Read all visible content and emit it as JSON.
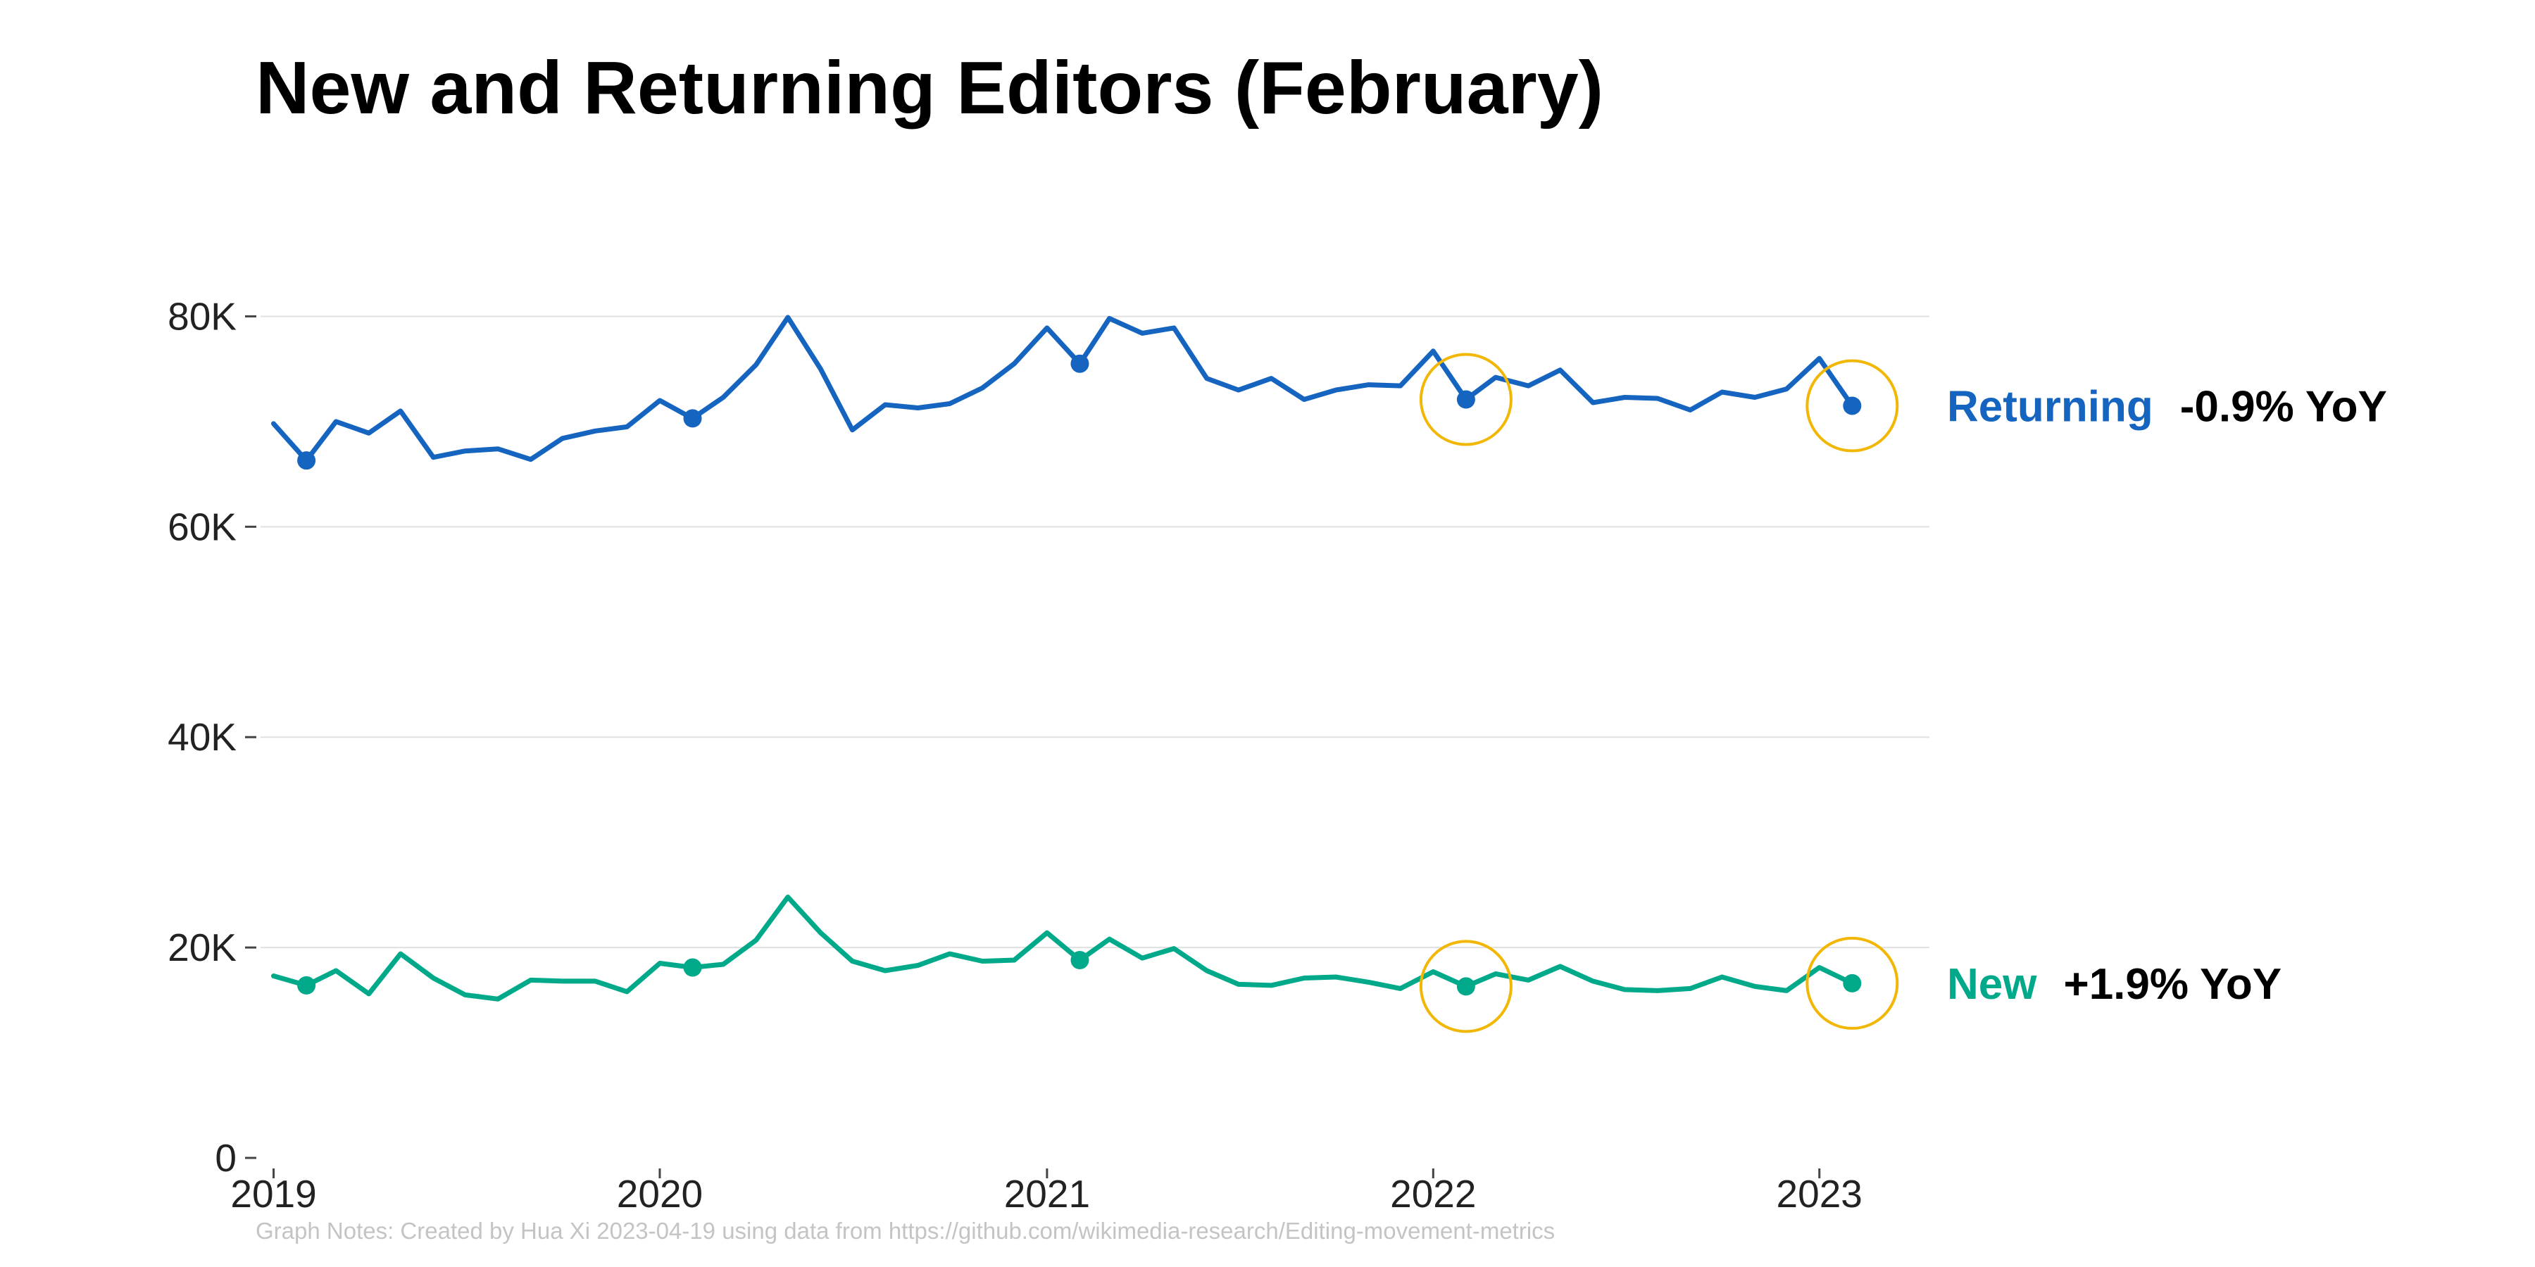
{
  "title": "New and Returning Editors (February)",
  "notes": "Graph Notes: Created by Hua Xi 2023-04-19 using data from https://github.com/wikimedia-research/Editing-movement-metrics",
  "colors": {
    "returning": "#1565c0",
    "new": "#00a98a",
    "highlight": "#f2b705",
    "grid": "#e0e0e0",
    "axis": "#444444"
  },
  "chart_data": {
    "type": "line",
    "title": "New and Returning Editors (February)",
    "xlabel": "",
    "ylabel": "",
    "x_range": [
      "2018-12-15",
      "2023-04-15"
    ],
    "ylim": [
      0,
      90000
    ],
    "y_ticks": [
      0,
      20000,
      40000,
      60000,
      80000
    ],
    "y_tick_labels": [
      "0",
      "20K",
      "40K",
      "60K",
      "80K"
    ],
    "x_ticks": [
      "2019-01",
      "2020-01",
      "2021-01",
      "2022-01",
      "2023-01"
    ],
    "x_tick_labels": [
      "2019",
      "2020",
      "2021",
      "2022",
      "2023"
    ],
    "grid": "horizontal",
    "x": [
      "2019-01",
      "2019-02",
      "2019-03",
      "2019-04",
      "2019-05",
      "2019-06",
      "2019-07",
      "2019-08",
      "2019-09",
      "2019-10",
      "2019-11",
      "2019-12",
      "2020-01",
      "2020-02",
      "2020-03",
      "2020-04",
      "2020-05",
      "2020-06",
      "2020-07",
      "2020-08",
      "2020-09",
      "2020-10",
      "2020-11",
      "2020-12",
      "2021-01",
      "2021-02",
      "2021-03",
      "2021-04",
      "2021-05",
      "2021-06",
      "2021-07",
      "2021-08",
      "2021-09",
      "2021-10",
      "2021-11",
      "2021-12",
      "2022-01",
      "2022-02",
      "2022-03",
      "2022-04",
      "2022-05",
      "2022-06",
      "2022-07",
      "2022-08",
      "2022-09",
      "2022-10",
      "2022-11",
      "2022-12",
      "2023-01",
      "2023-02"
    ],
    "series": [
      {
        "name": "Returning",
        "annotation": "-0.9% YoY",
        "highlight_month": "2023-02",
        "values": [
          69800,
          66300,
          70000,
          68900,
          71000,
          66600,
          67200,
          67400,
          66400,
          68400,
          69100,
          69500,
          72000,
          70300,
          72300,
          75400,
          79900,
          75000,
          69200,
          71600,
          71300,
          71700,
          73200,
          75500,
          78900,
          75500,
          79800,
          78400,
          78900,
          74100,
          73000,
          74100,
          72100,
          73000,
          73500,
          73400,
          76700,
          72100,
          74200,
          73400,
          74900,
          71800,
          72300,
          72200,
          71100,
          72800,
          72300,
          73100,
          76000,
          71500
        ]
      },
      {
        "name": "New",
        "annotation": "+1.9% YoY",
        "highlight_month": "2023-02",
        "values": [
          17300,
          16400,
          17800,
          15600,
          19400,
          17100,
          15500,
          15100,
          16900,
          16800,
          16800,
          15800,
          18500,
          18100,
          18400,
          20700,
          24800,
          21400,
          18700,
          17800,
          18300,
          19400,
          18700,
          18800,
          21400,
          18800,
          20800,
          19000,
          19900,
          17800,
          16500,
          16400,
          17100,
          17200,
          16700,
          16100,
          17700,
          16300,
          17500,
          16900,
          18200,
          16800,
          16000,
          15900,
          16100,
          17200,
          16300,
          15900,
          18100,
          16600
        ]
      }
    ],
    "markers": [
      "2019-02",
      "2020-02",
      "2021-02",
      "2022-02",
      "2023-02"
    ],
    "circled": [
      "2022-02",
      "2023-02"
    ]
  }
}
